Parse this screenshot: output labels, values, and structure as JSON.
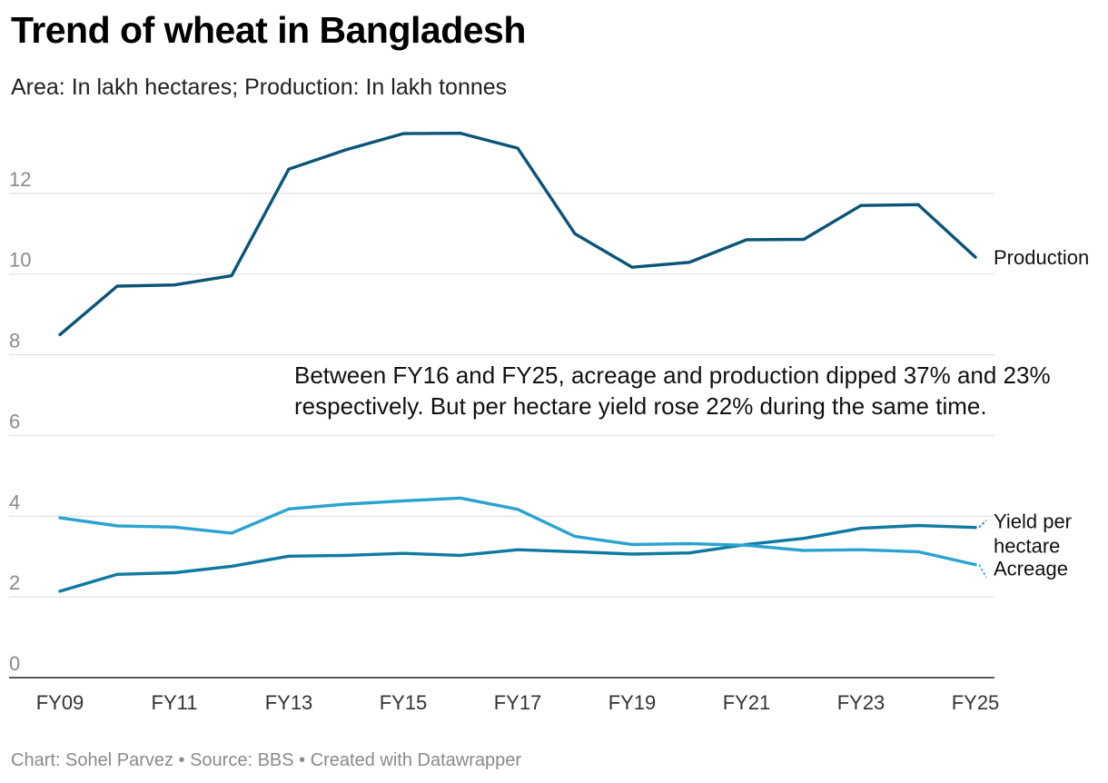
{
  "title": "Trend of wheat in Bangladesh",
  "subtitle": "Area: In lakh hectares; Production: In lakh tonnes",
  "footer": "Chart: Sohel Parvez • Source: BBS • Created with Datawrapper",
  "chart_data": {
    "type": "line",
    "title": "Trend of wheat in Bangladesh",
    "subtitle": "Area: In lakh hectares; Production: In lakh tonnes",
    "x": [
      "FY09",
      "FY10",
      "FY11",
      "FY12",
      "FY13",
      "FY14",
      "FY15",
      "FY16",
      "FY17",
      "FY18",
      "FY19",
      "FY20",
      "FY21",
      "FY22",
      "FY23",
      "FY24",
      "FY25"
    ],
    "xticks": [
      "FY09",
      "FY11",
      "FY13",
      "FY15",
      "FY17",
      "FY19",
      "FY21",
      "FY23",
      "FY25"
    ],
    "yticks": [
      0,
      2,
      4,
      6,
      8,
      10,
      12
    ],
    "ylim": [
      0,
      14
    ],
    "grid": true,
    "series": [
      {
        "name": "Production",
        "label_lines": [
          "Production"
        ],
        "color": "#0b5478",
        "values": [
          8.5,
          9.7,
          9.73,
          9.96,
          12.6,
          13.08,
          13.48,
          13.49,
          13.12,
          11.0,
          10.17,
          10.29,
          10.85,
          10.86,
          11.7,
          11.72,
          10.42
        ]
      },
      {
        "name": "Yield per hectare",
        "label_lines": [
          "Yield per",
          "hectare"
        ],
        "color": "#0f7aa1",
        "values": [
          2.14,
          2.56,
          2.6,
          2.76,
          3.01,
          3.03,
          3.08,
          3.03,
          3.17,
          3.12,
          3.06,
          3.09,
          3.3,
          3.45,
          3.7,
          3.77,
          3.72
        ]
      },
      {
        "name": "Acreage",
        "label_lines": [
          "Acreage"
        ],
        "color": "#2aa3d1",
        "values": [
          3.96,
          3.76,
          3.73,
          3.58,
          4.18,
          4.3,
          4.38,
          4.45,
          4.17,
          3.5,
          3.3,
          3.32,
          3.28,
          3.15,
          3.17,
          3.12,
          2.8
        ]
      }
    ],
    "annotation": {
      "lines": [
        "Between FY16 and FY25, acreage and production dipped 37% and 23%",
        "respectively. But per hectare yield rose 22% during the same time."
      ]
    }
  }
}
